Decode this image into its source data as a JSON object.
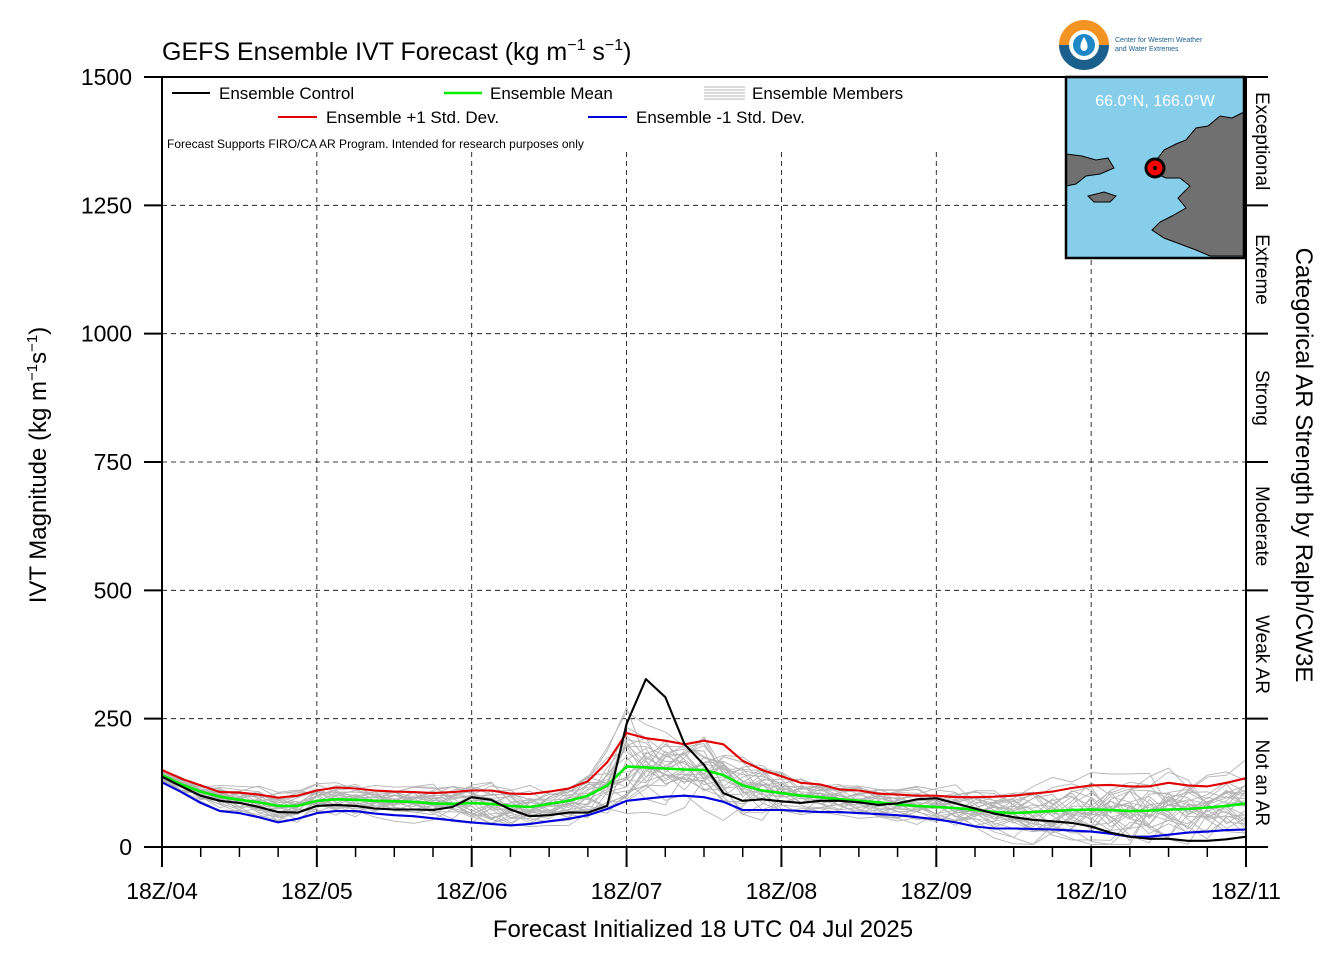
{
  "chart_data": {
    "type": "line",
    "title": "GEFS Ensemble IVT Forecast (kg m⁻¹ s⁻¹)",
    "xlabel": "Forecast Initialized 18 UTC 04 Jul 2025",
    "ylabel": "IVT Magnitude (kg m⁻¹s⁻¹)",
    "right_label": "Categorical AR Strength by Ralph/CW3E",
    "ylim": [
      0,
      1500
    ],
    "yticks": [
      0,
      250,
      500,
      750,
      1000,
      1250,
      1500
    ],
    "xlim": [
      0,
      168
    ],
    "xticks": [
      {
        "hour": 0,
        "label": "18Z/04"
      },
      {
        "hour": 24,
        "label": "18Z/05"
      },
      {
        "hour": 48,
        "label": "18Z/06"
      },
      {
        "hour": 72,
        "label": "18Z/07"
      },
      {
        "hour": 96,
        "label": "18Z/08"
      },
      {
        "hour": 120,
        "label": "18Z/09"
      },
      {
        "hour": 144,
        "label": "18Z/10"
      },
      {
        "hour": 168,
        "label": "18Z/11"
      }
    ],
    "grid": true,
    "legend_position": "top-left",
    "categories_right": [
      {
        "label": "Not an AR",
        "range": [
          0,
          250
        ]
      },
      {
        "label": "Weak AR",
        "range": [
          250,
          500
        ]
      },
      {
        "label": "Moderate",
        "range": [
          500,
          750
        ]
      },
      {
        "label": "Strong",
        "range": [
          750,
          1000
        ]
      },
      {
        "label": "Extreme",
        "range": [
          1000,
          1250
        ]
      },
      {
        "label": "Exceptional",
        "range": [
          1250,
          1500
        ]
      }
    ],
    "x_hours": [
      0,
      3,
      6,
      9,
      12,
      15,
      18,
      21,
      24,
      27,
      30,
      33,
      36,
      39,
      42,
      45,
      48,
      51,
      54,
      57,
      60,
      63,
      66,
      69,
      72,
      75,
      78,
      81,
      84,
      87,
      90,
      93,
      96,
      99,
      102,
      105,
      108,
      111,
      114,
      117,
      120,
      123,
      126,
      129,
      132,
      135,
      138,
      141,
      144,
      147,
      150,
      153,
      156,
      159,
      162,
      165,
      168
    ],
    "series": [
      {
        "name": "Ensemble Control",
        "color": "#000000",
        "values": [
          137,
          118,
          100,
          90,
          86,
          78,
          68,
          67,
          80,
          82,
          80,
          75,
          73,
          73,
          72,
          78,
          97,
          92,
          73,
          60,
          62,
          67,
          67,
          80,
          240,
          327,
          292,
          200,
          160,
          105,
          90,
          93,
          89,
          86,
          90,
          90,
          87,
          82,
          85,
          93,
          95,
          85,
          75,
          65,
          58,
          53,
          50,
          47,
          40,
          28,
          20,
          16,
          16,
          12,
          12,
          15,
          20
        ]
      },
      {
        "name": "Ensemble Mean",
        "color": "#00ee00",
        "values": [
          140,
          122,
          108,
          98,
          92,
          87,
          80,
          80,
          90,
          93,
          92,
          90,
          89,
          88,
          85,
          84,
          86,
          84,
          80,
          78,
          84,
          90,
          100,
          120,
          157,
          155,
          153,
          151,
          150,
          140,
          120,
          110,
          105,
          100,
          97,
          93,
          90,
          87,
          83,
          80,
          78,
          76,
          72,
          68,
          66,
          68,
          70,
          72,
          73,
          72,
          70,
          71,
          73,
          74,
          77,
          80,
          85
        ]
      },
      {
        "name": "Ensemble +1 Std. Dev.",
        "color": "#e00000",
        "values": [
          150,
          133,
          120,
          107,
          106,
          102,
          96,
          100,
          110,
          116,
          114,
          110,
          108,
          107,
          105,
          107,
          110,
          110,
          104,
          103,
          108,
          114,
          128,
          165,
          222,
          212,
          207,
          200,
          207,
          200,
          168,
          150,
          138,
          125,
          122,
          112,
          110,
          104,
          102,
          100,
          100,
          97,
          97,
          98,
          100,
          104,
          108,
          115,
          120,
          121,
          118,
          118,
          125,
          120,
          118,
          125,
          134
        ]
      },
      {
        "name": "Ensemble -1 Std. Dev.",
        "color": "#0000dd",
        "values": [
          126,
          107,
          86,
          70,
          66,
          58,
          48,
          55,
          66,
          70,
          70,
          65,
          62,
          60,
          56,
          52,
          48,
          45,
          42,
          45,
          50,
          55,
          62,
          74,
          90,
          94,
          98,
          100,
          97,
          88,
          72,
          72,
          72,
          70,
          68,
          68,
          66,
          64,
          62,
          58,
          54,
          48,
          40,
          36,
          36,
          35,
          34,
          32,
          30,
          26,
          20,
          20,
          24,
          28,
          30,
          33,
          34
        ]
      }
    ],
    "ensemble_members": {
      "name": "Ensemble Members",
      "color": "#b4b4b4",
      "count": 30
    }
  },
  "header": {
    "title_main": "GEFS Ensemble IVT Forecast (kg m",
    "title_exp1": "−1",
    "title_mid": " s",
    "title_exp2": "−1",
    "title_end": ")"
  },
  "axes": {
    "ylabel_main": "IVT Magnitude (kg m",
    "ylabel_exp1": "−1",
    "ylabel_mid": "s",
    "ylabel_exp2": "−1",
    "ylabel_end": ")",
    "xlabel": "Forecast Initialized 18 UTC 04 Jul 2025",
    "right_label": "Categorical AR Strength by Ralph/CW3E"
  },
  "legend": {
    "control": "Ensemble Control",
    "mean": "Ensemble Mean",
    "members": "Ensemble Members",
    "plus_std": "Ensemble +1 Std. Dev.",
    "minus_std": "Ensemble -1 Std. Dev.",
    "note": "Forecast Supports FIRO/CA AR Program. Intended for research purposes only"
  },
  "inset": {
    "location": "66.0°N, 166.0°W",
    "water_color": "#87ceeb",
    "land_color": "#707070"
  },
  "logo": {
    "line1": "Center for Western Weather",
    "line2": "and Water Extremes"
  }
}
